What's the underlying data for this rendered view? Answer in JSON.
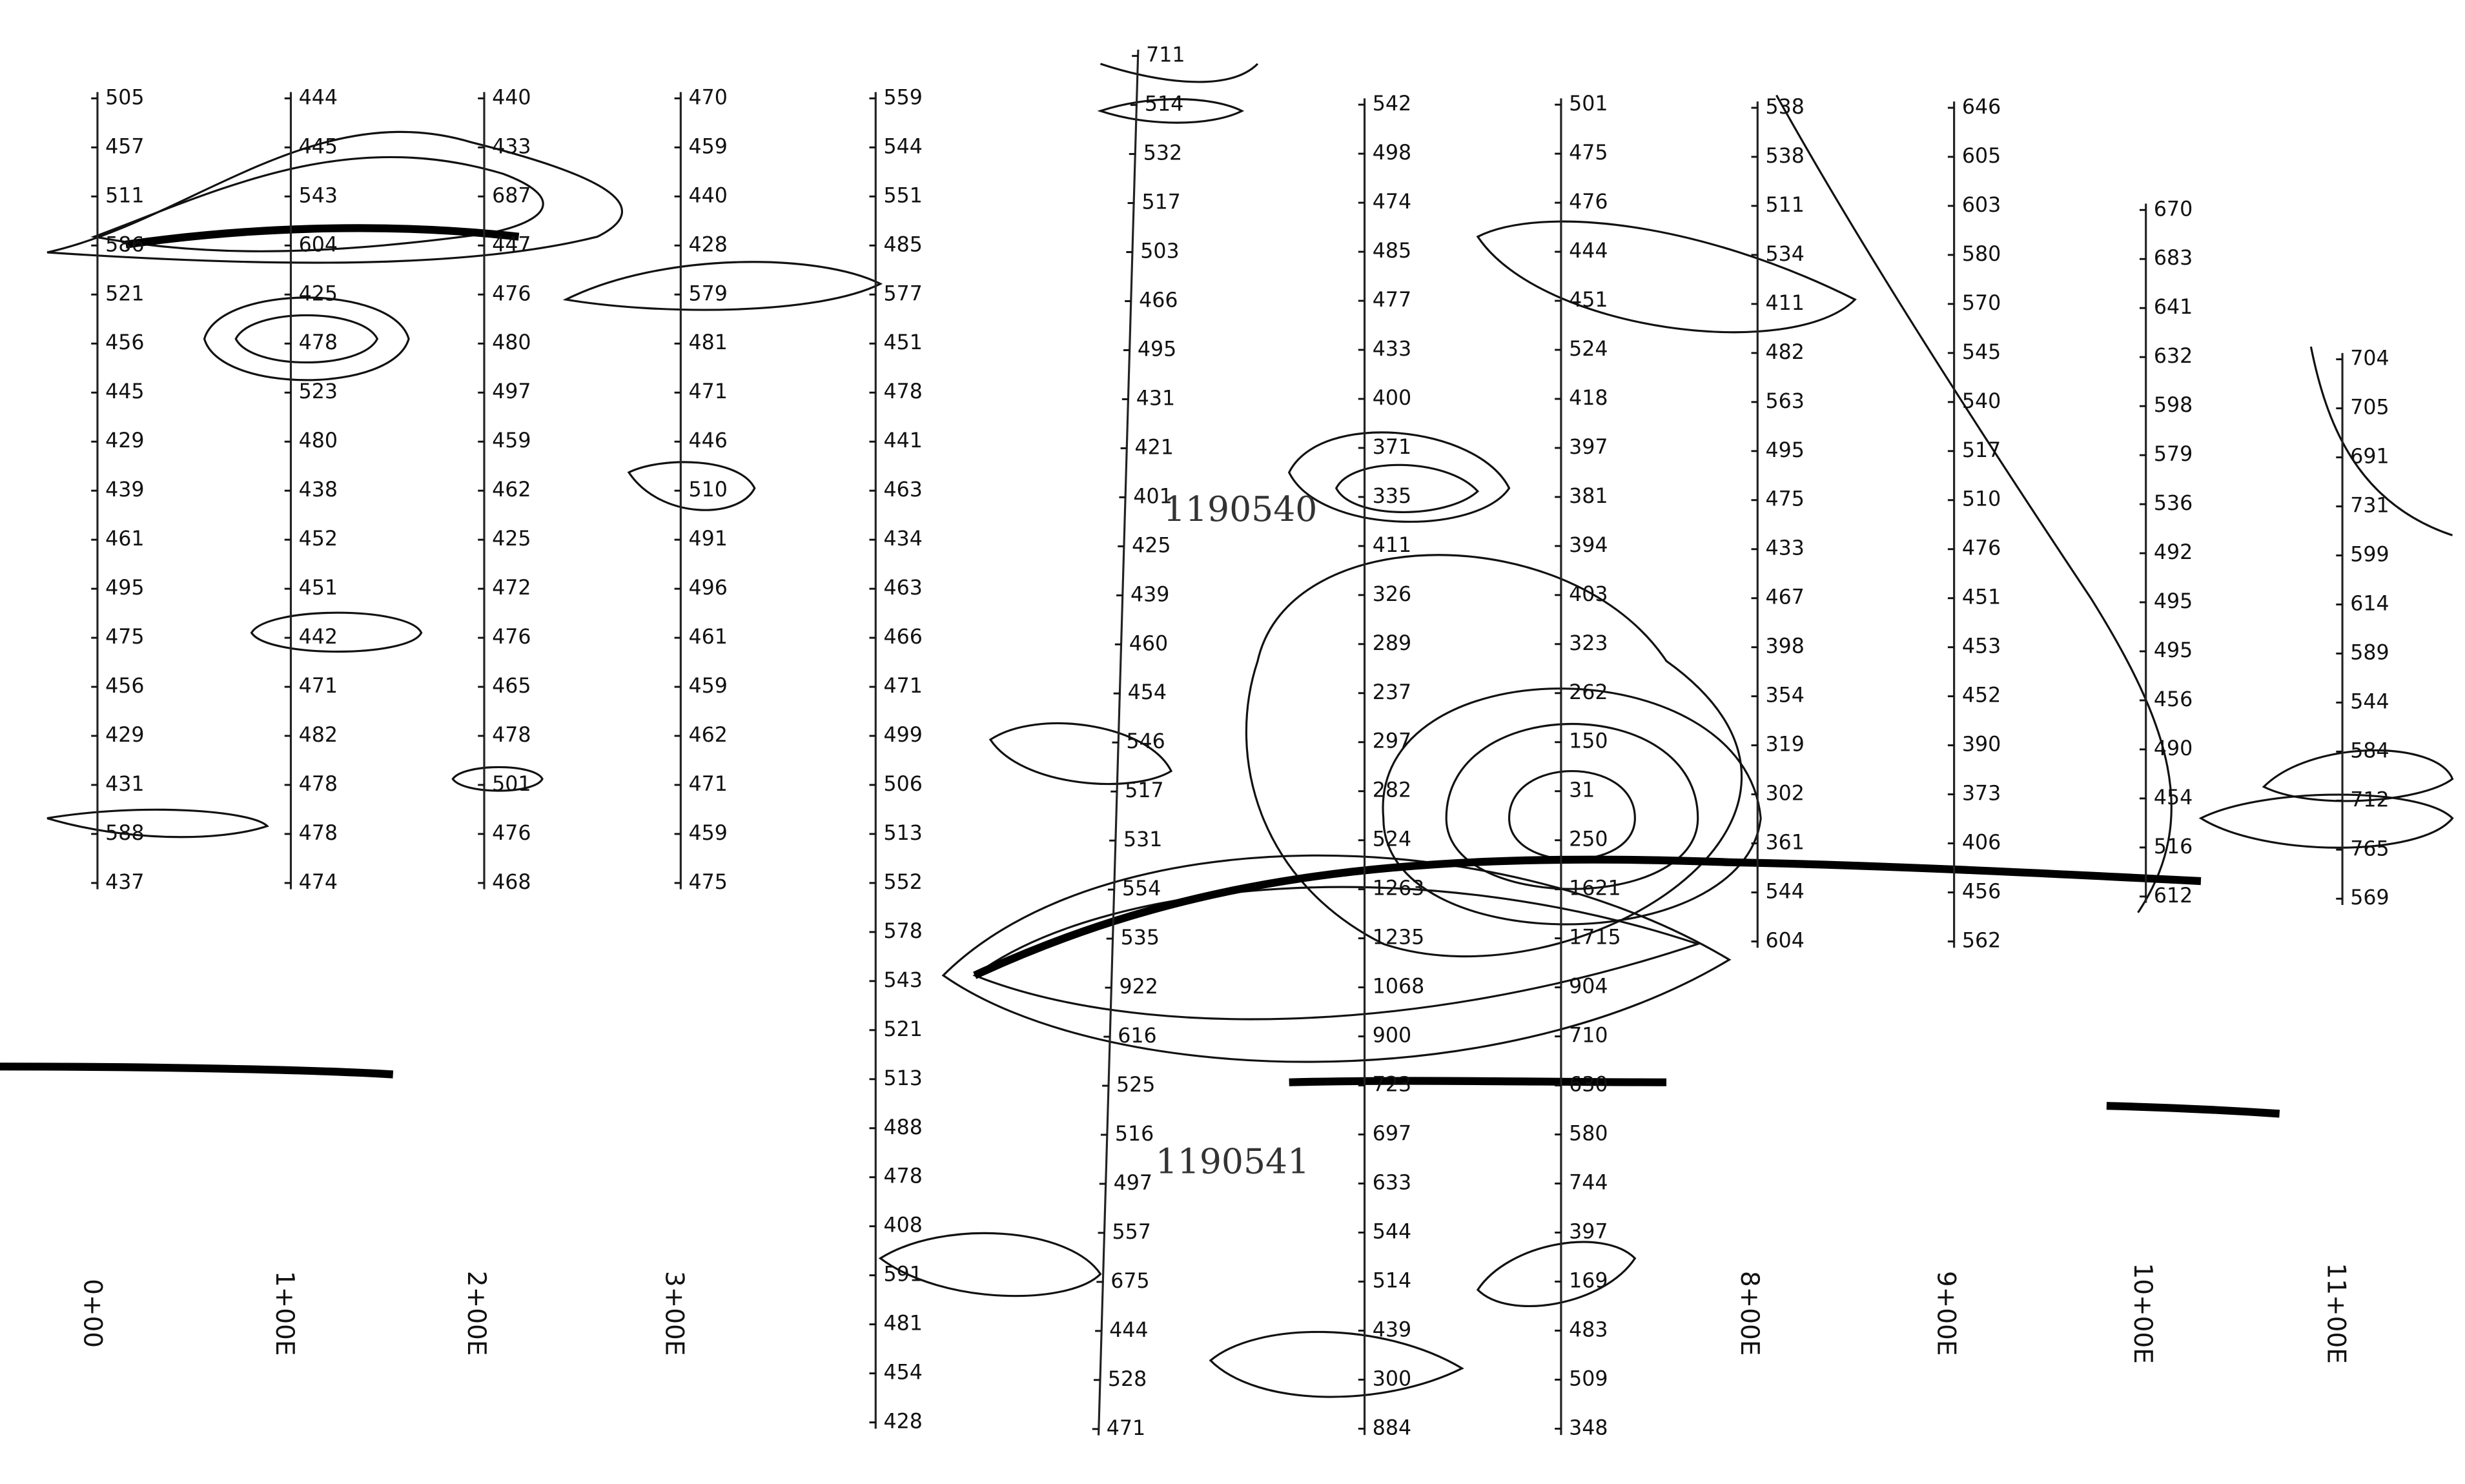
{
  "map": {
    "ids": [
      "1190540",
      "1190541"
    ],
    "lines": [
      {
        "label": "0+00",
        "values": [
          505,
          457,
          511,
          586,
          521,
          456,
          445,
          429,
          439,
          461,
          495,
          475,
          456,
          429,
          431,
          588,
          437
        ]
      },
      {
        "label": "1+00E",
        "values": [
          444,
          445,
          543,
          604,
          425,
          478,
          523,
          480,
          438,
          452,
          451,
          442,
          471,
          482,
          478,
          478,
          474
        ]
      },
      {
        "label": "2+00E",
        "values": [
          440,
          433,
          687,
          447,
          476,
          480,
          497,
          459,
          462,
          425,
          472,
          476,
          465,
          478,
          501,
          476,
          468
        ]
      },
      {
        "label": "3+00E",
        "values": [
          470,
          459,
          440,
          428,
          579,
          481,
          471,
          446,
          510,
          491,
          496,
          461,
          459,
          462,
          471,
          459,
          475
        ]
      },
      {
        "values": [
          559,
          544,
          551,
          485,
          577,
          451,
          478,
          441,
          463,
          434,
          463,
          466,
          471,
          499,
          506,
          513,
          552,
          578,
          543,
          521,
          513,
          488,
          478,
          408,
          591,
          481,
          454,
          428
        ]
      },
      {
        "values": [
          711,
          514,
          532,
          517,
          503,
          466,
          495,
          431,
          421,
          401,
          425,
          439,
          460,
          454,
          546,
          517,
          531,
          554,
          535,
          922,
          616,
          525,
          516,
          497,
          557,
          675,
          444,
          528,
          471
        ]
      },
      {
        "values": [
          542,
          498,
          474,
          485,
          477,
          433,
          400,
          371,
          335,
          411,
          326,
          289,
          237,
          297,
          282,
          524,
          1263,
          1235,
          1068,
          900,
          723,
          697,
          633,
          544,
          514,
          439,
          300,
          884
        ]
      },
      {
        "values": [
          501,
          475,
          476,
          444,
          451,
          524,
          418,
          397,
          381,
          394,
          403,
          323,
          262,
          150,
          31,
          250,
          1621,
          1715,
          904,
          710,
          630,
          580,
          744,
          397,
          169,
          483,
          509,
          348
        ]
      },
      {
        "label": "8+00E",
        "values": [
          538,
          538,
          511,
          534,
          411,
          482,
          563,
          495,
          475,
          433,
          467,
          398,
          354,
          319,
          302,
          361,
          544,
          604
        ]
      },
      {
        "label": "9+00E",
        "values": [
          646,
          605,
          603,
          580,
          570,
          545,
          540,
          517,
          510,
          476,
          451,
          453,
          452,
          390,
          373,
          406,
          456,
          562
        ]
      },
      {
        "label": "10+00E",
        "values": [
          670,
          683,
          641,
          632,
          598,
          579,
          536,
          492,
          495,
          495,
          456,
          490,
          454,
          516,
          612
        ]
      },
      {
        "label": "11+00E",
        "values": [
          704,
          705,
          691,
          731,
          599,
          614,
          589,
          544,
          584,
          712,
          765,
          569
        ]
      }
    ]
  }
}
